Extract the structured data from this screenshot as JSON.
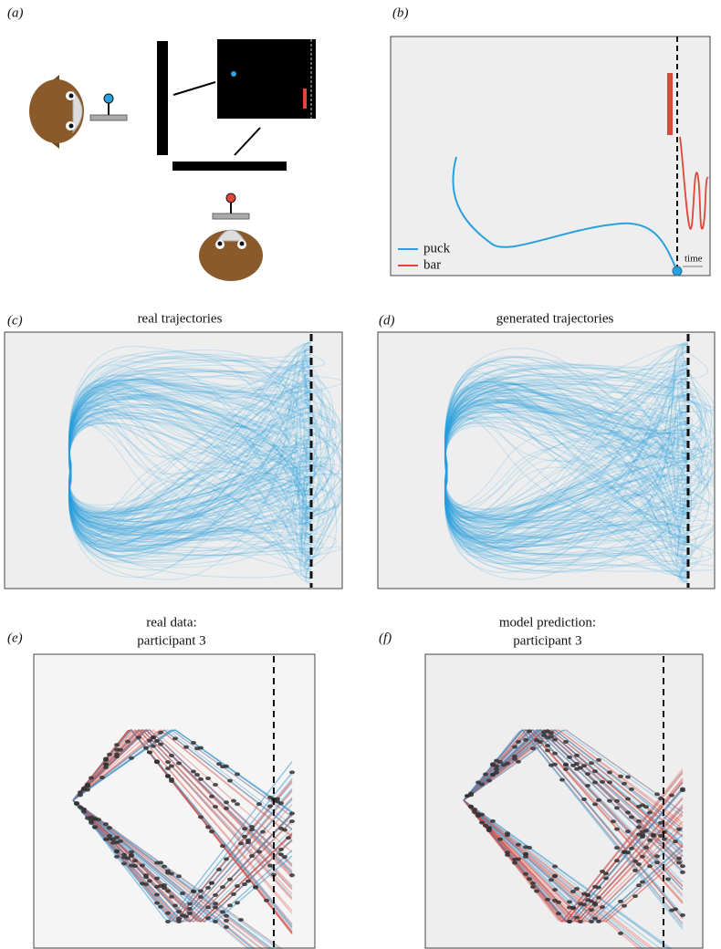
{
  "panels": [
    {
      "label": "(a)"
    },
    {
      "label": "(b)",
      "legend": [
        "puck",
        "bar"
      ],
      "annotation": "time"
    },
    {
      "label": "(c)",
      "title": "real trajectories"
    },
    {
      "label": "(d)",
      "title": "generated trajectories"
    },
    {
      "label": "(e)",
      "title": [
        "real data:",
        "participant 3"
      ]
    },
    {
      "label": "(f)",
      "title": [
        "model prediction:",
        "participant 3"
      ]
    }
  ]
}
